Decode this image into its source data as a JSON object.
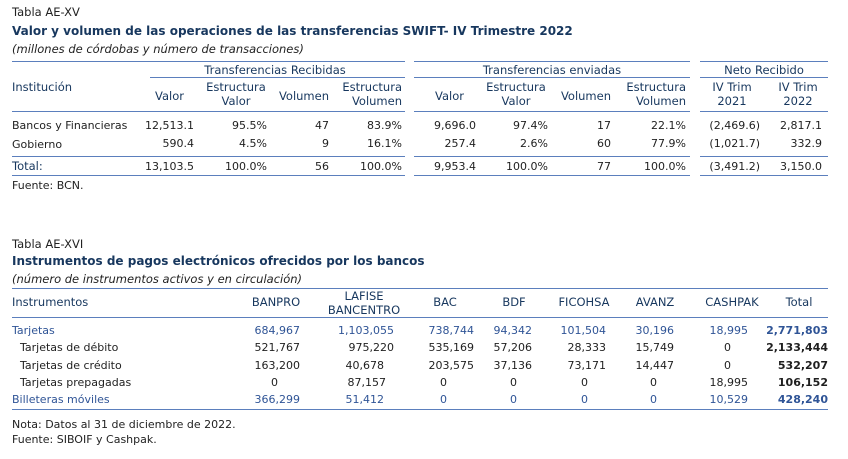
{
  "table1": {
    "caption": "Tabla AE-XV",
    "title": "Valor y volumen de las operaciones de las transferencias SWIFT- IV Trimestre 2022",
    "subtitle": "(millones de córdobas y número de transacciones)",
    "col_institucion": "Institución",
    "group_recibidas": "Transferencias Recibidas",
    "group_enviadas": "Transferencias enviadas",
    "group_neto": "Neto Recibido",
    "h_valor": "Valor",
    "h_estr_valor_1": "Estructura",
    "h_estr_valor_2": "Valor",
    "h_volumen": "Volumen",
    "h_estr_vol_1": "Estructura",
    "h_estr_vol_2": "Volumen",
    "h_trim2021_1": "IV Trim",
    "h_trim2021_2": "2021",
    "h_trim2022_1": "IV Trim",
    "h_trim2022_2": "2022",
    "rows": [
      {
        "name": "Bancos y Financieras",
        "rv": "12,513.1",
        "rev": "95.5%",
        "rvol": "47",
        "revol": "83.9%",
        "ev": "9,696.0",
        "eev": "97.4%",
        "evol": "17",
        "eevol": "22.1%",
        "n2021": "(2,469.6)",
        "n2022": "2,817.1"
      },
      {
        "name": "Gobierno",
        "rv": "590.4",
        "rev": "4.5%",
        "rvol": "9",
        "revol": "16.1%",
        "ev": "257.4",
        "eev": "2.6%",
        "evol": "60",
        "eevol": "77.9%",
        "n2021": "(1,021.7)",
        "n2022": "332.9"
      }
    ],
    "total": {
      "name": "Total:",
      "rv": "13,103.5",
      "rev": "100.0%",
      "rvol": "56",
      "revol": "100.0%",
      "ev": "9,953.4",
      "eev": "100.0%",
      "evol": "77",
      "eevol": "100.0%",
      "n2021": "(3,491.2)",
      "n2022": "3,150.0"
    },
    "source": "Fuente: BCN."
  },
  "table2": {
    "caption": "Tabla AE-XVI",
    "title": "Instrumentos de pagos electrónicos ofrecidos por los bancos",
    "subtitle": "(número de instrumentos activos y en circulación)",
    "headers": {
      "instrumentos": "Instrumentos",
      "banpro": "BANPRO",
      "lafise_1": "LAFISE",
      "lafise_2": "BANCENTRO",
      "bac": "BAC",
      "bdf": "BDF",
      "ficohsa": "FICOHSA",
      "avanz": "AVANZ",
      "cashpak": "CASHPAK",
      "total": "Total"
    },
    "rows": [
      {
        "name": "Tarjetas",
        "banpro": "684,967",
        "lafise": "1,103,055",
        "bac": "738,744",
        "bdf": "94,342",
        "ficohsa": "101,504",
        "avanz": "30,196",
        "cashpak": "18,995",
        "total": "2,771,803"
      },
      {
        "name": "Tarjetas de débito",
        "banpro": "521,767",
        "lafise": "975,220",
        "bac": "535,169",
        "bdf": "57,206",
        "ficohsa": "28,333",
        "avanz": "15,749",
        "cashpak": "0",
        "total": "2,133,444"
      },
      {
        "name": "Tarjetas de crédito",
        "banpro": "163,200",
        "lafise": "40,678",
        "bac": "203,575",
        "bdf": "37,136",
        "ficohsa": "73,171",
        "avanz": "14,447",
        "cashpak": "0",
        "total": "532,207"
      },
      {
        "name": "Tarjetas prepagadas",
        "banpro": "0",
        "lafise": "87,157",
        "bac": "0",
        "bdf": "0",
        "ficohsa": "0",
        "avanz": "0",
        "cashpak": "18,995",
        "total": "106,152"
      },
      {
        "name": "Billeteras móviles",
        "banpro": "366,299",
        "lafise": "51,412",
        "bac": "0",
        "bdf": "0",
        "ficohsa": "0",
        "avanz": "0",
        "cashpak": "10,529",
        "total": "428,240"
      }
    ],
    "note": "Nota: Datos al 31 de diciembre de 2022.",
    "source": "Fuente: SIBOIF y Cashpak."
  }
}
